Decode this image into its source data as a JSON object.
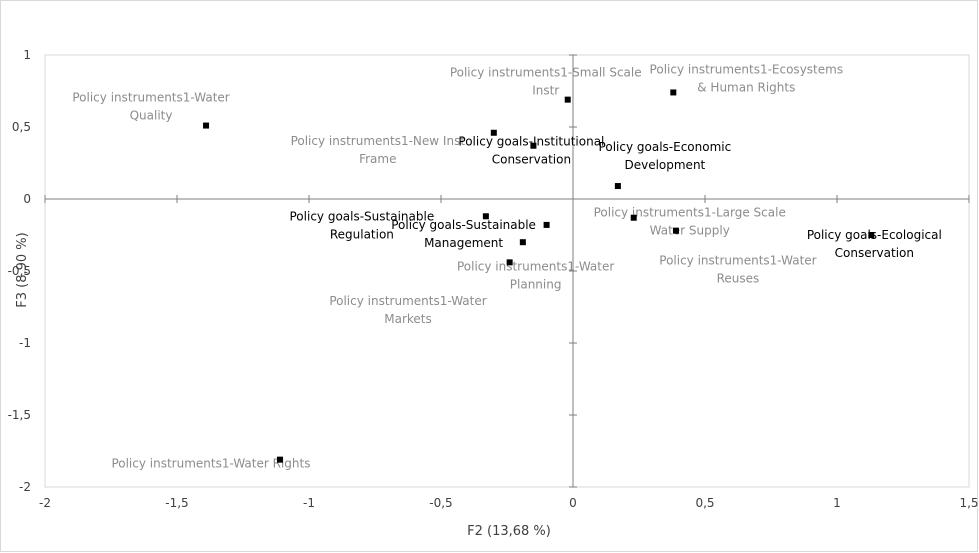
{
  "chart_data": {
    "type": "scatter",
    "title": "",
    "xlabel": "F2 (13,68 %)",
    "ylabel": "F3 (8,90 %)",
    "xlim": [
      -2,
      1.5
    ],
    "ylim": [
      -2,
      1
    ],
    "x_ticks": [
      {
        "value": -2,
        "label": "-2"
      },
      {
        "value": -1.5,
        "label": "-1,5"
      },
      {
        "value": -1,
        "label": "-1"
      },
      {
        "value": -0.5,
        "label": "-0,5"
      },
      {
        "value": 0,
        "label": "0"
      },
      {
        "value": 0.5,
        "label": "0,5"
      },
      {
        "value": 1,
        "label": "1"
      },
      {
        "value": 1.5,
        "label": "1,5"
      }
    ],
    "y_ticks": [
      {
        "value": 1,
        "label": "1"
      },
      {
        "value": 0.5,
        "label": "0,5"
      },
      {
        "value": 0,
        "label": "0"
      },
      {
        "value": -0.5,
        "label": "-0,5"
      },
      {
        "value": -1,
        "label": "-1"
      },
      {
        "value": -1.5,
        "label": "-1,5"
      },
      {
        "value": -2,
        "label": "-2"
      }
    ],
    "grid": false,
    "legend": "none",
    "colors": {
      "instrument_label": "#8c8c8c",
      "goal_label": "#000000",
      "marker": "#000000",
      "axis": "#7f7f7f"
    },
    "points": [
      {
        "x": -1.39,
        "y": 0.51,
        "lines": [
          "Policy instruments1-Water",
          "Quality"
        ],
        "group": "instrument"
      },
      {
        "x": -0.02,
        "y": 0.69,
        "lines": [
          "Policy instruments1-Small Scale",
          "Instr"
        ],
        "group": "instrument"
      },
      {
        "x": -0.3,
        "y": 0.46,
        "lines": [
          "Policy instruments1-New Inst",
          "Frame"
        ],
        "group": "instrument"
      },
      {
        "x": 0.38,
        "y": 0.74,
        "lines": [
          "Policy instruments1-Ecosystems",
          "& Human Rights"
        ],
        "group": "instrument"
      },
      {
        "x": -0.15,
        "y": 0.37,
        "lines": [
          "Policy goals-Institutional",
          "Conservation"
        ],
        "group": "goal"
      },
      {
        "x": 0.17,
        "y": 0.09,
        "lines": [
          "Policy goals-Economic",
          "Development"
        ],
        "group": "goal"
      },
      {
        "x": -0.33,
        "y": -0.12,
        "lines": [
          "Policy goals-Sustainable",
          "Regulation"
        ],
        "group": "goal"
      },
      {
        "x": -0.1,
        "y": -0.18,
        "lines": [
          "Policy goals-Sustainable",
          "Management"
        ],
        "group": "goal"
      },
      {
        "x": -0.19,
        "y": -0.3,
        "lines": [],
        "group": "none"
      },
      {
        "x": 0.23,
        "y": -0.13,
        "lines": [
          "Policy instruments1-Large Scale",
          "Water Supply"
        ],
        "group": "instrument"
      },
      {
        "x": 0.39,
        "y": -0.22,
        "lines": [
          "Policy instruments1-Water",
          "Reuses"
        ],
        "group": "instrument"
      },
      {
        "x": 1.13,
        "y": -0.25,
        "lines": [
          "Policy goals-Ecological",
          "Conservation"
        ],
        "group": "goal"
      },
      {
        "x": -0.24,
        "y": -0.44,
        "lines": [
          "Policy instruments1-Water",
          "Planning"
        ],
        "group": "instrument"
      },
      {
        "x": -1.11,
        "y": -1.81,
        "lines": [
          "Policy instruments1-Water  Rights"
        ],
        "group": "instrument"
      }
    ],
    "unanchored_labels": [
      {
        "lines": [
          "Policy instruments1-Water",
          "Markets"
        ],
        "group": "instrument"
      }
    ]
  }
}
